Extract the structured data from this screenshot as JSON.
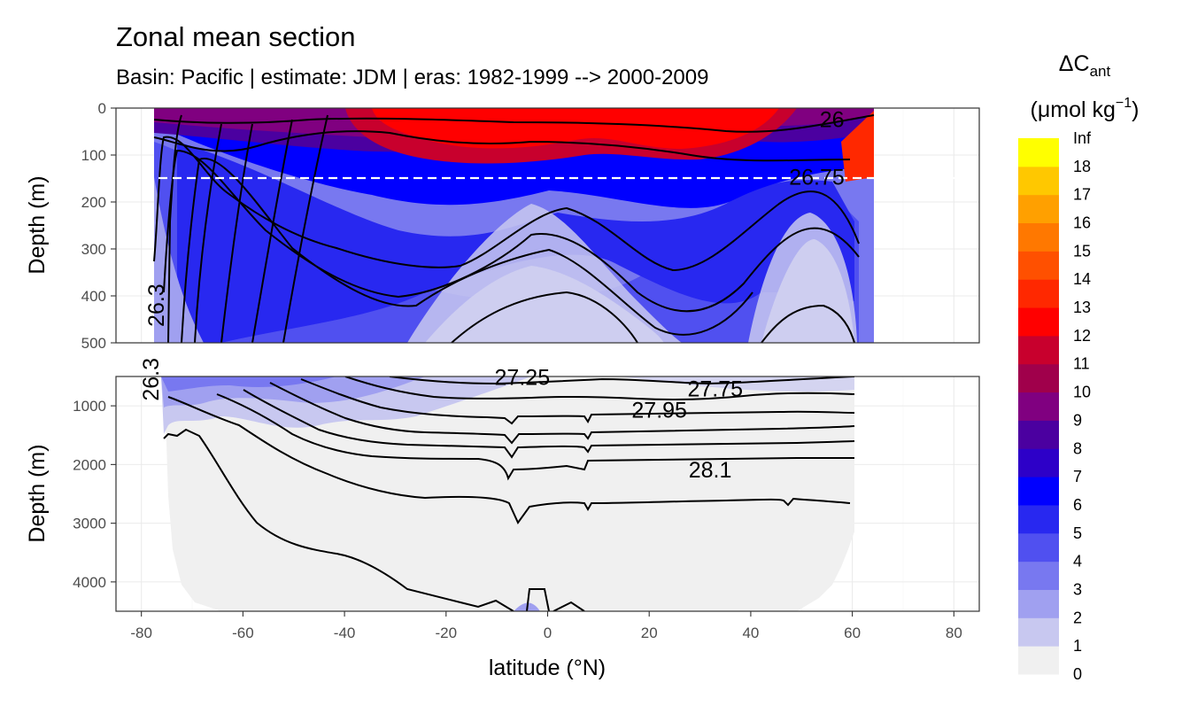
{
  "chart_data": {
    "type": "heatmap",
    "title": "Zonal mean section",
    "subtitle": "Basin: Pacific | estimate: JDM  | eras: 1982-1999 --> 2000-2009",
    "xlabel": "latitude (°N)",
    "ylabel": "Depth (m)",
    "x_ticks": [
      -80,
      -60,
      -40,
      -20,
      0,
      20,
      40,
      60,
      80
    ],
    "xlim": [
      -85,
      85
    ],
    "panels": [
      {
        "name": "upper",
        "ylim": [
          500,
          0
        ],
        "y_ticks": [
          0,
          100,
          200,
          300,
          400,
          500
        ]
      },
      {
        "name": "lower",
        "ylim": [
          4500,
          500
        ],
        "y_ticks": [
          1000,
          2000,
          3000,
          4000
        ]
      }
    ],
    "reference_line_depth": 150,
    "data_extent": {
      "lat_min": -77,
      "lat_max": 64
    },
    "legend": {
      "title": "ΔC",
      "title_sub": "ant",
      "unit_base": "(μmol kg",
      "unit_exp": "−1",
      "unit_close": ")",
      "breaks": [
        "0",
        "1",
        "2",
        "3",
        "4",
        "5",
        "6",
        "7",
        "8",
        "9",
        "10",
        "11",
        "12",
        "13",
        "14",
        "15",
        "16",
        "17",
        "18",
        "Inf"
      ],
      "colors": [
        "#F0F0F0",
        "#C8C8F0",
        "#A0A0F0",
        "#7878F0",
        "#5050F0",
        "#2828F0",
        "#0000FF",
        "#2D00C8",
        "#4B00A0",
        "#800080",
        "#A0004B",
        "#C8002D",
        "#FF0000",
        "#FF2800",
        "#FF5000",
        "#FF7800",
        "#FFA000",
        "#FFC800",
        "#FFFF00"
      ]
    },
    "isopycnal_labels": {
      "upper": [
        {
          "label": "26",
          "lat": 56,
          "depth": 25
        },
        {
          "label": "26.75",
          "lat": 53,
          "depth": 148
        },
        {
          "label": "26.3",
          "lat": -77,
          "depth": 420
        }
      ],
      "lower": [
        {
          "label": "27.25",
          "lat": -5,
          "depth": 520
        },
        {
          "label": "27.75",
          "lat": 33,
          "depth": 720
        },
        {
          "label": "27.95",
          "lat": 22,
          "depth": 1080
        },
        {
          "label": "28.1",
          "lat": 32,
          "depth": 2100
        },
        {
          "label": "26.3",
          "lat": -78,
          "depth": 550
        }
      ]
    }
  }
}
